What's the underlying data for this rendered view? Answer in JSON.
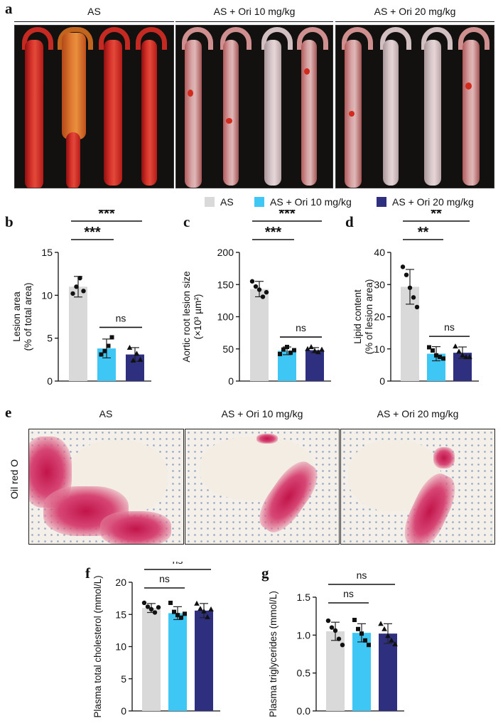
{
  "panels": {
    "a": "a",
    "b": "b",
    "c": "c",
    "d": "d",
    "e": "e",
    "f": "f",
    "g": "g"
  },
  "groups": [
    "AS",
    "AS + Ori 10 mg/kg",
    "AS + Ori 20 mg/kg"
  ],
  "colors": {
    "AS": "#d9d9d9",
    "Ori10": "#3ec6f4",
    "Ori20": "#2e2f7f"
  },
  "legend": [
    {
      "label": "AS",
      "color": "#d9d9d9"
    },
    {
      "label": "AS + Ori 10 mg/kg",
      "color": "#3ec6f4"
    },
    {
      "label": "AS + Ori 20 mg/kg",
      "color": "#2e2f7f"
    }
  ],
  "stain_label": "Oil red O",
  "chart_data": [
    {
      "id": "b",
      "type": "bar",
      "categories": [
        "AS",
        "AS + Ori 10 mg/kg",
        "AS + Ori 20 mg/kg"
      ],
      "values": [
        11.0,
        3.8,
        3.1
      ],
      "errors": [
        1.2,
        1.1,
        0.8
      ],
      "points": [
        [
          10.2,
          11.0,
          12.0,
          10.5
        ],
        [
          3.1,
          3.5,
          4.1,
          5.1
        ],
        [
          3.9,
          2.4,
          3.2,
          2.5
        ]
      ],
      "ylabel": [
        "Lesion area",
        "(% of total area)"
      ],
      "ylim": [
        0,
        15
      ],
      "yticks": [
        "0",
        "5",
        "10",
        "15"
      ],
      "ytickvals": [
        0,
        5,
        10,
        15
      ],
      "comparisons": [
        {
          "from": 0,
          "to": 1,
          "label": "***",
          "level": 1
        },
        {
          "from": 0,
          "to": 2,
          "label": "***",
          "level": 2
        },
        {
          "from": 1,
          "to": 2,
          "label": "ns",
          "level": 0
        }
      ]
    },
    {
      "id": "c",
      "type": "bar",
      "categories": [
        "AS",
        "AS + Ori 10 mg/kg",
        "AS + Ori 20 mg/kg"
      ],
      "values": [
        143,
        47,
        48
      ],
      "errors": [
        12,
        6,
        4
      ],
      "points": [
        [
          155,
          147,
          142,
          131,
          138
        ],
        [
          42,
          49,
          53,
          44,
          48
        ],
        [
          50,
          53,
          47,
          45,
          49
        ]
      ],
      "ylabel": [
        "Aortic root lesion size",
        "(×10³ µm²)"
      ],
      "ylim": [
        0,
        200
      ],
      "yticks": [
        "0",
        "50",
        "100",
        "150",
        "200"
      ],
      "ytickvals": [
        0,
        50,
        100,
        150,
        200
      ],
      "comparisons": [
        {
          "from": 0,
          "to": 1,
          "label": "***",
          "level": 1
        },
        {
          "from": 0,
          "to": 2,
          "label": "***",
          "level": 2
        },
        {
          "from": 1,
          "to": 2,
          "label": "ns",
          "level": 0
        }
      ]
    },
    {
      "id": "d",
      "type": "bar",
      "categories": [
        "AS",
        "AS + Ori 10 mg/kg",
        "AS + Ori 20 mg/kg"
      ],
      "values": [
        29.3,
        8.5,
        8.8
      ],
      "errors": [
        5.4,
        2.2,
        1.8
      ],
      "points": [
        [
          35.5,
          33.0,
          29.0,
          26.0,
          23.0
        ],
        [
          10.5,
          9.5,
          8.0,
          7.5,
          7.0
        ],
        [
          10.8,
          9.2,
          8.0,
          7.5,
          7.5
        ]
      ],
      "ylabel": [
        "Lipid content",
        "(% of lesion area)"
      ],
      "ylim": [
        0,
        40
      ],
      "yticks": [
        "0",
        "10",
        "20",
        "30",
        "40"
      ],
      "ytickvals": [
        0,
        10,
        20,
        30,
        40
      ],
      "comparisons": [
        {
          "from": 0,
          "to": 1,
          "label": "**",
          "level": 1
        },
        {
          "from": 0,
          "to": 2,
          "label": "**",
          "level": 2
        },
        {
          "from": 1,
          "to": 2,
          "label": "ns",
          "level": 0
        }
      ]
    },
    {
      "id": "f",
      "type": "bar",
      "categories": [
        "AS",
        "AS + Ori 10 mg/kg",
        "AS + Ori 20 mg/kg"
      ],
      "values": [
        16.0,
        15.2,
        15.6
      ],
      "errors": [
        0.7,
        1.0,
        1.1
      ],
      "points": [
        [
          16.8,
          16.2,
          15.8,
          15.3,
          16.1
        ],
        [
          16.8,
          15.4,
          14.9,
          14.5,
          15.1
        ],
        [
          16.7,
          15.9,
          15.5,
          14.6,
          15.8
        ]
      ],
      "ylabel": [
        "Plasma total cholesterol (mmol/L)"
      ],
      "ylim": [
        0,
        20
      ],
      "yticks": [
        "0",
        "5",
        "10",
        "15",
        "20"
      ],
      "ytickvals": [
        0,
        5,
        10,
        15,
        20
      ],
      "comparisons": [
        {
          "from": 0,
          "to": 1,
          "label": "ns",
          "level": 1
        },
        {
          "from": 0,
          "to": 2,
          "label": "ns",
          "level": 2
        }
      ]
    },
    {
      "id": "g",
      "type": "bar",
      "categories": [
        "AS",
        "AS + Ori 10 mg/kg",
        "AS + Ori 20 mg/kg"
      ],
      "values": [
        1.05,
        1.03,
        1.02
      ],
      "errors": [
        0.12,
        0.12,
        0.13
      ],
      "points": [
        [
          1.19,
          1.1,
          1.06,
          0.95,
          0.87
        ],
        [
          1.2,
          1.08,
          1.02,
          0.93,
          0.87
        ],
        [
          1.15,
          1.08,
          0.99,
          0.93,
          0.88
        ]
      ],
      "ylabel": [
        "Plasma triglycerides (mmol/L)"
      ],
      "ylim": [
        0,
        1.5
      ],
      "yticks": [
        "0.0",
        "0.5",
        "1.0",
        "1.5"
      ],
      "ytickvals": [
        0,
        0.5,
        1.0,
        1.5
      ],
      "comparisons": [
        {
          "from": 0,
          "to": 1,
          "label": "ns",
          "level": 1
        },
        {
          "from": 0,
          "to": 2,
          "label": "ns",
          "level": 2
        }
      ]
    }
  ]
}
